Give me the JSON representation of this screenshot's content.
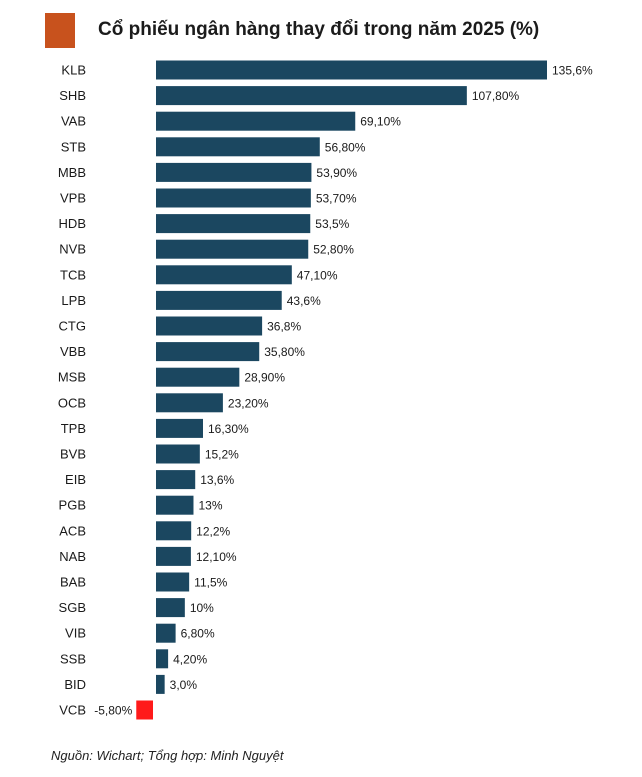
{
  "header": {
    "title": "Cổ phiếu ngân hàng thay đổi trong năm 2025 (%)"
  },
  "colors": {
    "brand": "#c8521d",
    "bar_positive": "#1b4760",
    "bar_negative": "#ff1a1a"
  },
  "chart_data": {
    "type": "bar",
    "orientation": "horizontal",
    "title": "Cổ phiếu ngân hàng thay đổi trong năm 2025 (%)",
    "xlabel": "",
    "ylabel": "",
    "xlim": [
      -5.8,
      135.6
    ],
    "grid": false,
    "categories": [
      "KLB",
      "SHB",
      "VAB",
      "STB",
      "MBB",
      "VPB",
      "HDB",
      "NVB",
      "TCB",
      "LPB",
      "CTG",
      "VBB",
      "MSB",
      "OCB",
      "TPB",
      "BVB",
      "EIB",
      "PGB",
      "ACB",
      "NAB",
      "BAB",
      "SGB",
      "VIB",
      "SSB",
      "BID",
      "VCB"
    ],
    "values": [
      135.6,
      107.8,
      69.1,
      56.8,
      53.9,
      53.7,
      53.5,
      52.8,
      47.1,
      43.6,
      36.8,
      35.8,
      28.9,
      23.2,
      16.3,
      15.2,
      13.6,
      13,
      12.2,
      12.1,
      11.5,
      10,
      6.8,
      4.2,
      3.0,
      -5.8
    ],
    "labels": [
      "135,6%",
      "107,80%",
      "69,10%",
      "56,80%",
      "53,90%",
      "53,70%",
      "53,5%",
      "52,80%",
      "47,10%",
      "43,6%",
      "36,8%",
      "35,80%",
      "28,90%",
      "23,20%",
      "16,30%",
      "15,2%",
      "13,6%",
      "13%",
      "12,2%",
      "12,10%",
      "11,5%",
      "10%",
      "6,80%",
      "4,20%",
      "3,0%",
      "-5,80%"
    ]
  },
  "footer": {
    "source": "Nguồn: Wichart; Tổng hợp: Minh Nguyệt"
  }
}
